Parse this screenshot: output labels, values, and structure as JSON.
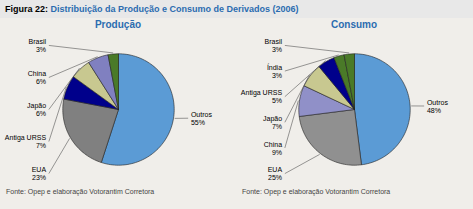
{
  "title": "Figura 22: Distribuição da Produção e Consumo de Derivados (2006)",
  "chart_data": [
    {
      "type": "pie",
      "title": "Produção",
      "categories": [
        "Outros",
        "EUA",
        "Antiga URSS",
        "Japão",
        "China",
        "Brasil"
      ],
      "values": [
        55,
        23,
        7,
        6,
        6,
        3
      ],
      "value_labels": [
        "55%",
        "23%",
        "7%",
        "6%",
        "6%",
        "3%"
      ],
      "colors": [
        "#5b9bd5",
        "#808080",
        "#00008b",
        "#c8c890",
        "#8080c0",
        "#4a7a28"
      ],
      "data_labels": true,
      "annotations": [
        "Fonte: Opep e elaboração Votorantim Corretora"
      ]
    },
    {
      "type": "pie",
      "title": "Consumo",
      "categories": [
        "Outros",
        "EUA",
        "China",
        "Japão",
        "Antiga URSS",
        "Índia",
        "Brasil"
      ],
      "values": [
        48,
        25,
        9,
        7,
        5,
        3,
        3
      ],
      "value_labels": [
        "48%",
        "25%",
        "9%",
        "7%",
        "5%",
        "3%",
        "3%"
      ],
      "colors": [
        "#5b9bd5",
        "#909090",
        "#9090c8",
        "#c8c890",
        "#00008b",
        "#4a7a28",
        "#4a7a28"
      ],
      "data_labels": true,
      "annotations": [
        "Fonte: Opep e elaboração Votorantim Corretora"
      ]
    }
  ]
}
